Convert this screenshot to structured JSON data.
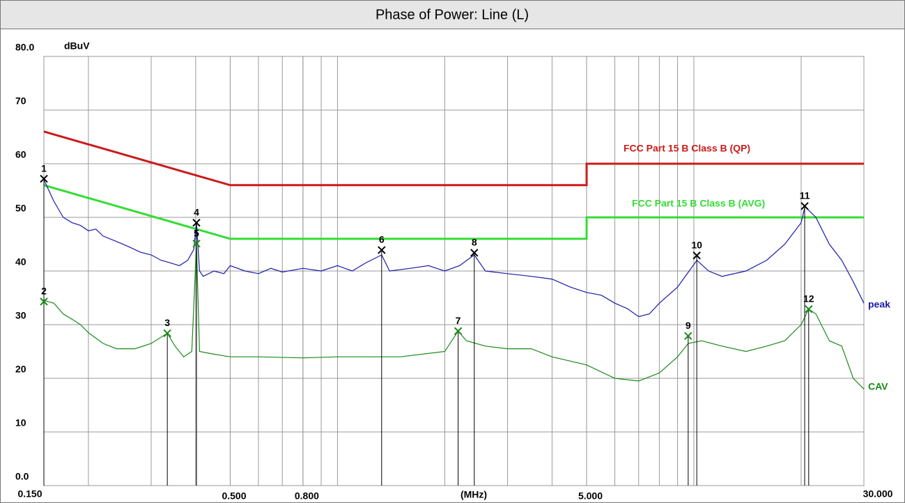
{
  "chart_data": {
    "type": "line",
    "title": "Phase of Power: Line (L)",
    "y_label": "dBuV",
    "x_label": "(MHz)",
    "log_x": true,
    "grid": true,
    "xlim": [
      0.15,
      30
    ],
    "ylim": [
      0,
      80
    ],
    "xticks": [
      {
        "value": 0.15,
        "label": "0.150"
      },
      {
        "value": 0.5,
        "label": "0.500"
      },
      {
        "value": 0.8,
        "label": "0.800"
      },
      {
        "value": 5,
        "label": "5.000"
      },
      {
        "value": 30,
        "label": "30.000"
      }
    ],
    "xgrid": [
      0.2,
      0.3,
      0.4,
      0.5,
      0.6,
      0.7,
      0.8,
      0.9,
      1,
      2,
      3,
      4,
      5,
      6,
      7,
      8,
      9,
      10,
      20
    ],
    "yticks": [
      {
        "value": 0,
        "label": "0.0"
      },
      10,
      20,
      30,
      40,
      50,
      60,
      70,
      {
        "value": 80,
        "label": "80.0"
      }
    ],
    "series": [
      {
        "name": "FCC Part 15 B Class B (QP)",
        "color": "#cc1a1a",
        "width": 3,
        "x": [
          0.15,
          0.5,
          5,
          5,
          30
        ],
        "values": [
          66,
          56,
          56,
          60,
          60
        ]
      },
      {
        "name": "FCC Part 15 B Class B (AVG)",
        "color": "#33dd33",
        "width": 3,
        "x": [
          0.15,
          0.5,
          5,
          5,
          30
        ],
        "values": [
          56,
          46,
          46,
          50,
          50
        ]
      },
      {
        "name": "peak",
        "color": "#1a1aaa",
        "width": 1.2,
        "x": [
          0.15,
          0.16,
          0.17,
          0.18,
          0.19,
          0.2,
          0.21,
          0.22,
          0.24,
          0.26,
          0.28,
          0.3,
          0.32,
          0.34,
          0.36,
          0.38,
          0.395,
          0.402,
          0.41,
          0.42,
          0.45,
          0.48,
          0.5,
          0.55,
          0.6,
          0.65,
          0.7,
          0.8,
          0.9,
          1.0,
          1.1,
          1.2,
          1.33,
          1.4,
          1.6,
          1.8,
          2.0,
          2.2,
          2.42,
          2.6,
          3.0,
          3.5,
          4.0,
          4.5,
          5.0,
          5.5,
          6.0,
          6.5,
          7.0,
          7.5,
          8.0,
          9.0,
          10.2,
          11,
          12,
          14,
          16,
          18,
          20,
          20.5,
          22,
          24,
          26,
          28,
          30
        ],
        "values": [
          57,
          53,
          50,
          49,
          48.5,
          47.5,
          47.8,
          46.5,
          45.5,
          44.5,
          43.5,
          43,
          42,
          41.5,
          41,
          42,
          44,
          49,
          40,
          39,
          40,
          39.5,
          41,
          40,
          39.5,
          40.5,
          39.8,
          40.5,
          40,
          41,
          40,
          41.5,
          43,
          40,
          40.5,
          41,
          40,
          41,
          43,
          40,
          39.5,
          39,
          38.5,
          37,
          36,
          35.5,
          34,
          33,
          31.5,
          32,
          34,
          37,
          42,
          40,
          39,
          40,
          42,
          45,
          49,
          52,
          50,
          45,
          42,
          38,
          34
        ]
      },
      {
        "name": "CAV",
        "color": "#1a8a1a",
        "width": 1.2,
        "x": [
          0.15,
          0.16,
          0.17,
          0.18,
          0.19,
          0.2,
          0.22,
          0.24,
          0.27,
          0.3,
          0.333,
          0.35,
          0.37,
          0.39,
          0.402,
          0.41,
          0.45,
          0.5,
          0.6,
          0.8,
          1.0,
          1.5,
          2.0,
          2.18,
          2.3,
          2.6,
          3.0,
          3.5,
          4.0,
          5.0,
          6.0,
          7.0,
          8.0,
          9.0,
          9.64,
          10.5,
          12,
          14,
          16,
          18,
          20,
          21,
          22,
          24,
          26,
          28,
          30
        ],
        "values": [
          34.5,
          34,
          32,
          31,
          30,
          28.5,
          26.5,
          25.5,
          25.5,
          26.5,
          28.4,
          26,
          24,
          25,
          45,
          25,
          24.5,
          24,
          24,
          23.8,
          24,
          24,
          25,
          28.8,
          27,
          26,
          25.5,
          25.5,
          24,
          22.5,
          20,
          19.5,
          21,
          24,
          26.5,
          27,
          26,
          25,
          26,
          27,
          30,
          32.9,
          32,
          27,
          26,
          20,
          18
        ]
      }
    ],
    "markers": [
      {
        "label": "1",
        "x": 0.15,
        "value": 57.2,
        "color": "#000000"
      },
      {
        "label": "2",
        "x": 0.15,
        "value": 34.3,
        "color": "#1a8a1a"
      },
      {
        "label": "3",
        "x": 0.333,
        "value": 28.4,
        "color": "#1a8a1a"
      },
      {
        "label": "4",
        "x": 0.402,
        "value": 49.0,
        "color": "#000000"
      },
      {
        "label": "5",
        "x": 0.402,
        "value": 45.1,
        "color": "#1a8a1a"
      },
      {
        "label": "6",
        "x": 1.33,
        "value": 43.9,
        "color": "#000000"
      },
      {
        "label": "7",
        "x": 2.18,
        "value": 28.8,
        "color": "#1a8a1a"
      },
      {
        "label": "8",
        "x": 2.42,
        "value": 43.4,
        "color": "#000000"
      },
      {
        "label": "9",
        "x": 9.64,
        "value": 27.9,
        "color": "#1a8a1a"
      },
      {
        "label": "10",
        "x": 10.19,
        "value": 42.9,
        "color": "#000000"
      },
      {
        "label": "11",
        "x": 20.46,
        "value": 52.1,
        "color": "#000000"
      },
      {
        "label": "12",
        "x": 21.0,
        "value": 32.9,
        "color": "#1a8a1a"
      }
    ]
  }
}
